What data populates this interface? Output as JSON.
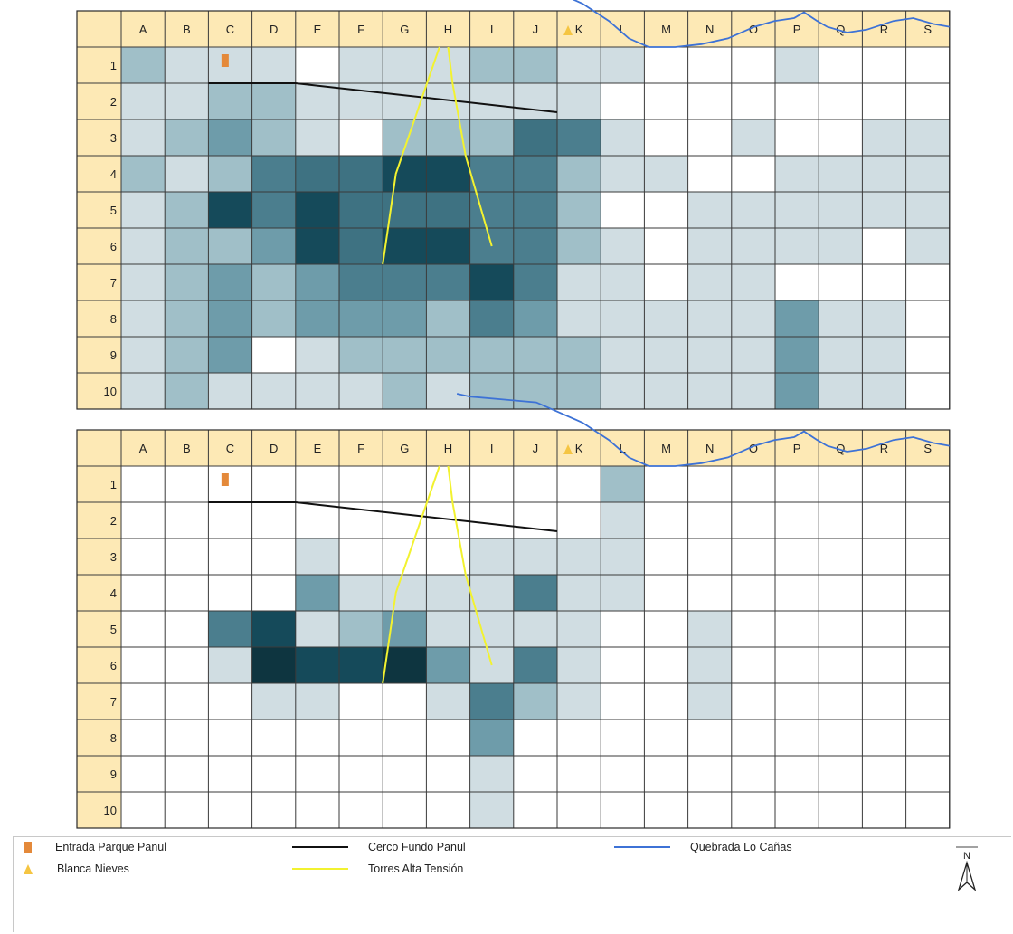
{
  "maps": [
    {
      "columns": [
        "A",
        "B",
        "C",
        "D",
        "E",
        "F",
        "G",
        "H",
        "I",
        "J",
        "K",
        "L",
        "M",
        "N",
        "O",
        "P",
        "Q",
        "R",
        "S"
      ],
      "rows": [
        "1",
        "2",
        "3",
        "4",
        "5",
        "6",
        "7",
        "8",
        "9",
        "10"
      ],
      "cells": [
        [
          2,
          1,
          1,
          1,
          0,
          1,
          1,
          1,
          2,
          2,
          1,
          1,
          0,
          0,
          0,
          1,
          0,
          0,
          0
        ],
        [
          1,
          1,
          2,
          2,
          1,
          1,
          1,
          1,
          1,
          1,
          1,
          0,
          0,
          0,
          0,
          0,
          0,
          0,
          0
        ],
        [
          1,
          2,
          3,
          2,
          1,
          0,
          2,
          2,
          2,
          5,
          4,
          1,
          0,
          0,
          1,
          0,
          0,
          1,
          1
        ],
        [
          2,
          1,
          2,
          4,
          5,
          5,
          6,
          6,
          4,
          4,
          2,
          1,
          1,
          0,
          0,
          1,
          1,
          1,
          1
        ],
        [
          1,
          2,
          6,
          4,
          6,
          5,
          5,
          5,
          4,
          4,
          2,
          0,
          0,
          1,
          1,
          1,
          1,
          1,
          1
        ],
        [
          1,
          2,
          2,
          3,
          6,
          5,
          6,
          6,
          4,
          4,
          2,
          1,
          0,
          1,
          1,
          1,
          1,
          0,
          1
        ],
        [
          1,
          2,
          3,
          2,
          3,
          4,
          4,
          4,
          6,
          4,
          1,
          1,
          0,
          1,
          1,
          0,
          0,
          0,
          0
        ],
        [
          1,
          2,
          3,
          2,
          3,
          3,
          3,
          2,
          4,
          3,
          1,
          1,
          1,
          1,
          1,
          3,
          1,
          1,
          0
        ],
        [
          1,
          2,
          3,
          0,
          1,
          2,
          2,
          2,
          2,
          2,
          2,
          1,
          1,
          1,
          1,
          3,
          1,
          1,
          0
        ],
        [
          1,
          2,
          1,
          1,
          1,
          1,
          2,
          1,
          2,
          2,
          2,
          1,
          1,
          1,
          1,
          3,
          1,
          1,
          0
        ]
      ]
    },
    {
      "columns": [
        "A",
        "B",
        "C",
        "D",
        "E",
        "F",
        "G",
        "H",
        "I",
        "J",
        "K",
        "L",
        "M",
        "N",
        "O",
        "P",
        "Q",
        "R",
        "S"
      ],
      "rows": [
        "1",
        "2",
        "3",
        "4",
        "5",
        "6",
        "7",
        "8",
        "9",
        "10"
      ],
      "cells": [
        [
          0,
          0,
          0,
          0,
          0,
          0,
          0,
          0,
          0,
          0,
          0,
          2,
          0,
          0,
          0,
          0,
          0,
          0,
          0
        ],
        [
          0,
          0,
          0,
          0,
          0,
          0,
          0,
          0,
          0,
          0,
          0,
          1,
          0,
          0,
          0,
          0,
          0,
          0,
          0
        ],
        [
          0,
          0,
          0,
          0,
          1,
          0,
          0,
          0,
          1,
          1,
          1,
          1,
          0,
          0,
          0,
          0,
          0,
          0,
          0
        ],
        [
          0,
          0,
          0,
          0,
          3,
          1,
          1,
          1,
          1,
          4,
          1,
          1,
          0,
          0,
          0,
          0,
          0,
          0,
          0
        ],
        [
          0,
          0,
          4,
          6,
          1,
          2,
          3,
          1,
          1,
          1,
          1,
          0,
          0,
          1,
          0,
          0,
          0,
          0,
          0
        ],
        [
          0,
          0,
          1,
          7,
          6,
          6,
          7,
          3,
          1,
          4,
          1,
          0,
          0,
          1,
          0,
          0,
          0,
          0,
          0
        ],
        [
          0,
          0,
          0,
          1,
          1,
          0,
          0,
          1,
          4,
          2,
          1,
          0,
          0,
          1,
          0,
          0,
          0,
          0,
          0
        ],
        [
          0,
          0,
          0,
          0,
          0,
          0,
          0,
          0,
          3,
          0,
          0,
          0,
          0,
          0,
          0,
          0,
          0,
          0,
          0
        ],
        [
          0,
          0,
          0,
          0,
          0,
          0,
          0,
          0,
          1,
          0,
          0,
          0,
          0,
          0,
          0,
          0,
          0,
          0,
          0
        ],
        [
          0,
          0,
          0,
          0,
          0,
          0,
          0,
          0,
          1,
          0,
          0,
          0,
          0,
          0,
          0,
          0,
          0,
          0,
          0
        ]
      ]
    }
  ],
  "palette": [
    "#ffffff",
    "#d0dde2",
    "#a0bfc8",
    "#6e9caa",
    "#4b7e8e",
    "#3e7282",
    "#154a5a",
    "#0e3540"
  ],
  "header_color": "#fde9b5",
  "colors": {
    "entrance": "#e4893a",
    "peak": "#f5c542",
    "fence": "#111111",
    "towers": "#f2f230",
    "creek": "#3d72d6"
  },
  "legend": {
    "entrance": "Entrada Parque Panul",
    "peak": "Blanca Nieves",
    "fence": "Cerco Fundo Panul",
    "towers": "Torres Alta Tensión",
    "creek": "Quebrada Lo Cañas"
  },
  "north_label": "N"
}
